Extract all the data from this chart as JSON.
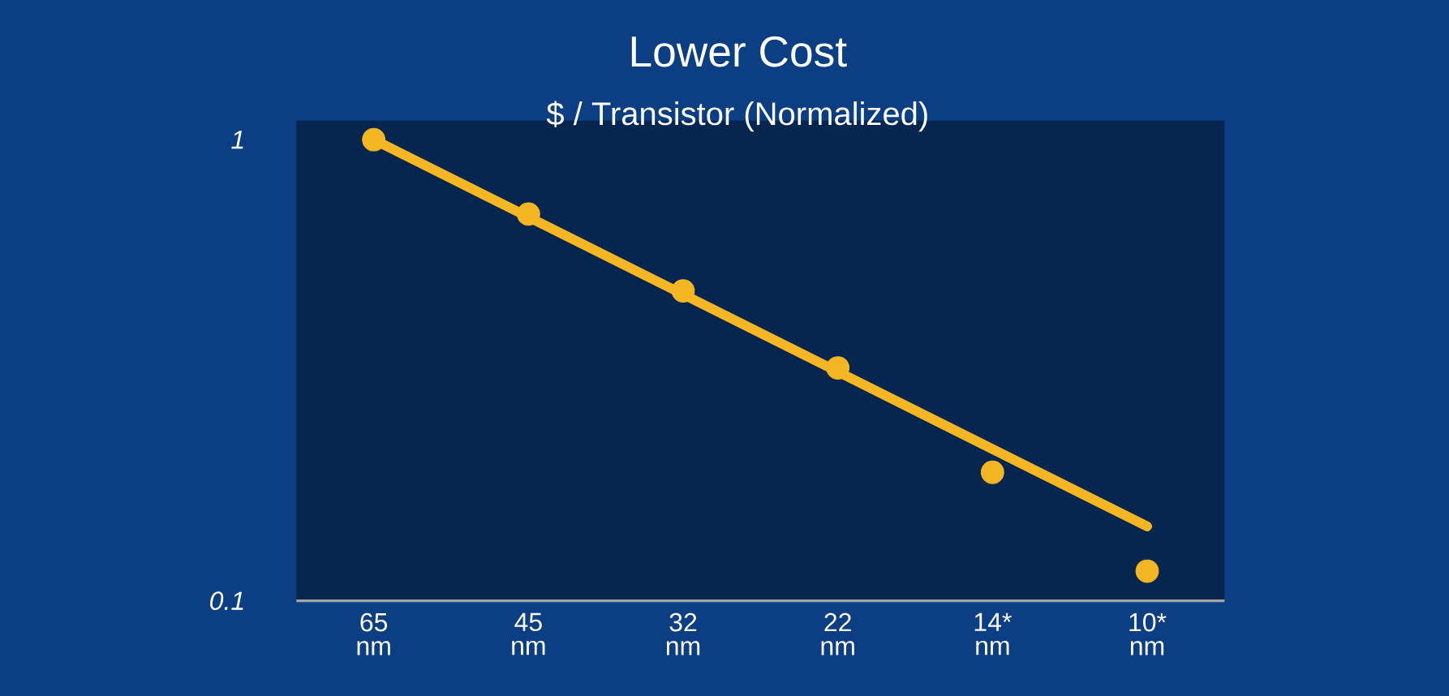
{
  "chart_data": {
    "type": "scatter",
    "title": "Lower Cost",
    "subtitle": "$ / Transistor (Normalized)",
    "categories": [
      "65 nm",
      "45 nm",
      "32 nm",
      "22 nm",
      "14* nm",
      "10* nm"
    ],
    "series": [
      {
        "type": "line",
        "color": "#f5b623",
        "marker": "none",
        "x": [
          "65 nm",
          "10* nm"
        ],
        "values": [
          1.0,
          0.145
        ]
      },
      {
        "color": "#f5b623",
        "marker": "circle",
        "values": [
          1.0,
          0.69,
          0.47,
          0.32,
          0.19,
          0.116
        ]
      }
    ],
    "log": "y",
    "ylim": [
      0.1,
      1.1
    ],
    "yticks": [
      0.1,
      1
    ]
  }
}
